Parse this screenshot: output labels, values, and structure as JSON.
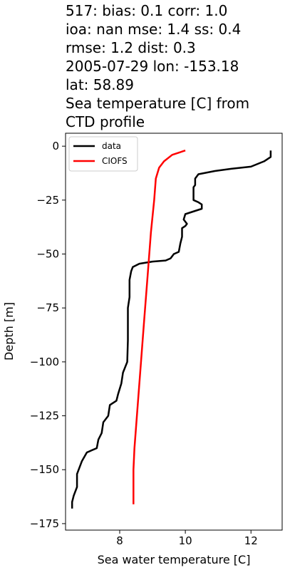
{
  "title_lines": [
    "517: bias: 0.1  corr: 1.0",
    "ioa: nan  mse: 1.4  ss: 0.4",
    "rmse: 1.2  dist: 0.3",
    "2005-07-29 lon: -153.18",
    "lat: 58.89",
    "Sea temperature [C] from",
    "CTD profile"
  ],
  "chart_data": {
    "type": "line",
    "xlabel": "Sea water temperature [C]",
    "ylabel": "Depth [m]",
    "xlim": [
      6.35,
      12.95
    ],
    "ylim": [
      -178,
      6
    ],
    "xticks": [
      8,
      10,
      12
    ],
    "yticks": [
      0,
      -25,
      -50,
      -75,
      -100,
      -125,
      -150,
      -175
    ],
    "grid": false,
    "legend_position": "top-left",
    "series": [
      {
        "name": "data",
        "color": "#000000",
        "points": [
          [
            12.6,
            -2
          ],
          [
            12.6,
            -5
          ],
          [
            12.4,
            -7
          ],
          [
            12.0,
            -9.5
          ],
          [
            11.4,
            -10.5
          ],
          [
            10.9,
            -11.5
          ],
          [
            10.4,
            -13
          ],
          [
            10.3,
            -15
          ],
          [
            10.3,
            -18
          ],
          [
            10.25,
            -19
          ],
          [
            10.25,
            -25
          ],
          [
            10.4,
            -26
          ],
          [
            10.5,
            -27
          ],
          [
            10.5,
            -29
          ],
          [
            10.3,
            -30
          ],
          [
            10.0,
            -31.5
          ],
          [
            9.95,
            -34
          ],
          [
            10.05,
            -36
          ],
          [
            10.0,
            -37
          ],
          [
            9.9,
            -38
          ],
          [
            9.9,
            -42
          ],
          [
            9.85,
            -45
          ],
          [
            9.8,
            -49
          ],
          [
            9.65,
            -50
          ],
          [
            9.55,
            -52
          ],
          [
            9.4,
            -53
          ],
          [
            9.0,
            -53.5
          ],
          [
            8.6,
            -54.5
          ],
          [
            8.4,
            -56
          ],
          [
            8.35,
            -58
          ],
          [
            8.3,
            -62
          ],
          [
            8.3,
            -70
          ],
          [
            8.25,
            -75
          ],
          [
            8.25,
            -90
          ],
          [
            8.23,
            -100
          ],
          [
            8.1,
            -105
          ],
          [
            8.05,
            -110
          ],
          [
            7.95,
            -115
          ],
          [
            7.9,
            -118
          ],
          [
            7.7,
            -120
          ],
          [
            7.65,
            -125
          ],
          [
            7.5,
            -128
          ],
          [
            7.45,
            -133
          ],
          [
            7.35,
            -136
          ],
          [
            7.3,
            -140
          ],
          [
            7.0,
            -142
          ],
          [
            6.85,
            -146
          ],
          [
            6.75,
            -150
          ],
          [
            6.7,
            -152
          ],
          [
            6.7,
            -158
          ],
          [
            6.6,
            -162
          ],
          [
            6.55,
            -165
          ],
          [
            6.55,
            -168
          ]
        ]
      },
      {
        "name": "CIOFS",
        "color": "#ff0000",
        "points": [
          [
            10.0,
            -2
          ],
          [
            9.6,
            -4
          ],
          [
            9.35,
            -7
          ],
          [
            9.2,
            -10
          ],
          [
            9.1,
            -15
          ],
          [
            9.05,
            -25
          ],
          [
            8.95,
            -40
          ],
          [
            8.85,
            -60
          ],
          [
            8.75,
            -80
          ],
          [
            8.65,
            -100
          ],
          [
            8.55,
            -120
          ],
          [
            8.45,
            -140
          ],
          [
            8.42,
            -150
          ],
          [
            8.42,
            -160
          ],
          [
            8.42,
            -166
          ]
        ]
      }
    ]
  }
}
